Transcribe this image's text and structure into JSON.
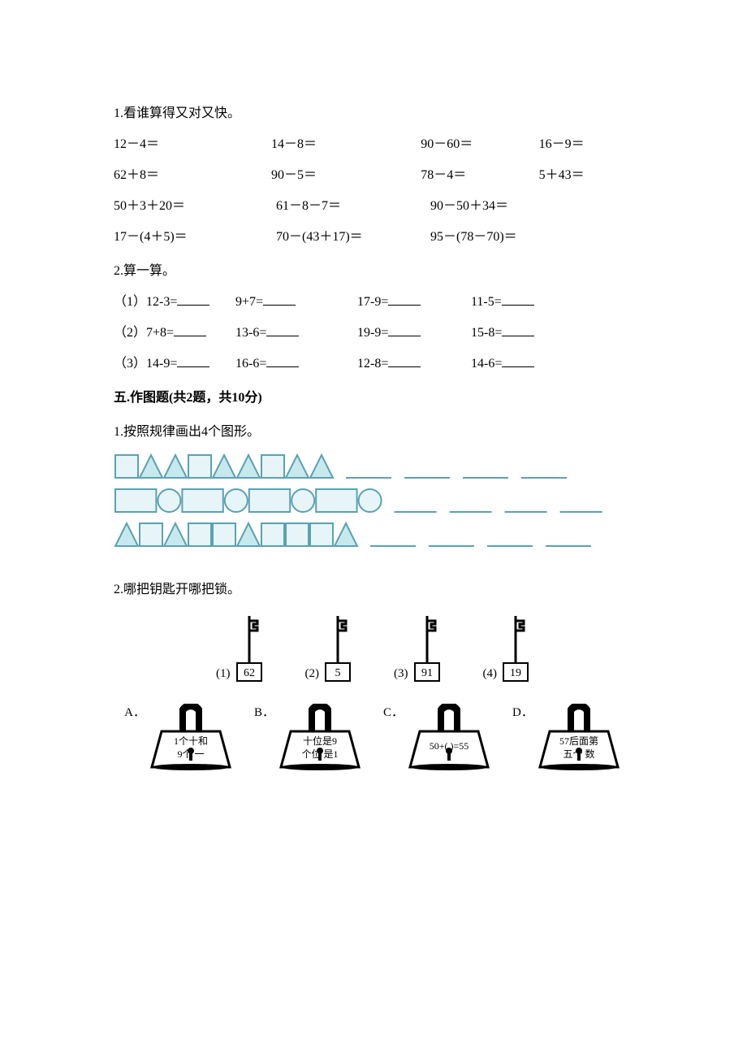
{
  "colors": {
    "text": "#000000",
    "shape_stroke": "#5aa2b3",
    "shape_fill_a": "#c7e9ee",
    "shape_fill_b": "#e7f5f8",
    "bg": "#ffffff"
  },
  "q1": {
    "title": "1.看谁算得又对又快。",
    "rows": [
      [
        "12－4＝",
        "14－8＝",
        "90－60＝",
        "16－9＝"
      ],
      [
        "62＋8＝",
        "90－5＝",
        "78－4＝",
        "5＋43＝"
      ],
      [
        "50＋3＋20＝",
        "61－8－7＝",
        "90－50＋34＝"
      ],
      [
        "17－(4＋5)＝",
        "70－(43＋17)＝",
        "95－(78－70)＝"
      ]
    ]
  },
  "q2": {
    "title": "2.算一算。",
    "rows": [
      {
        "label": "（1）",
        "items": [
          "12-3=",
          "9+7=",
          "17-9=",
          "11-5="
        ]
      },
      {
        "label": "（2）",
        "items": [
          "7+8=",
          "13-6=",
          "19-9=",
          "15-8="
        ]
      },
      {
        "label": "（3）",
        "items": [
          "14-9=",
          "16-6=",
          "12-8=",
          "14-6="
        ]
      }
    ]
  },
  "section5": "五.作图题(共2题，共10分)",
  "q3": {
    "title": "1.按照规律画出4个图形。",
    "diagram": {
      "rows": [
        {
          "shapes": "STTSTTSTT",
          "blanks": 4,
          "blank_width": 56
        },
        {
          "shapes": "RCRCRCRC",
          "blanks": 4,
          "blank_width": 52
        },
        {
          "shapes": "TSTSSTSSST",
          "blanks": 4,
          "blank_width": 56
        }
      ],
      "shape_size": 28,
      "note": "S=square, T=triangle, R=rectangle(wide), C=circle"
    }
  },
  "q4": {
    "title": "2.哪把钥匙开哪把锁。",
    "keys": [
      {
        "label": "(1)",
        "value": "62"
      },
      {
        "label": "(2)",
        "value": "5"
      },
      {
        "label": "(3)",
        "value": "91"
      },
      {
        "label": "(4)",
        "value": "19"
      }
    ],
    "locks": [
      {
        "label": "A．",
        "line1": "1个十和",
        "line2": "9个 一"
      },
      {
        "label": "B．",
        "line1": "十位是9",
        "line2": "个位 是1"
      },
      {
        "label": "C．",
        "line1": "50+( )=55",
        "line2": ""
      },
      {
        "label": "D．",
        "line1": "57后面第",
        "line2": "五个 数"
      }
    ]
  }
}
